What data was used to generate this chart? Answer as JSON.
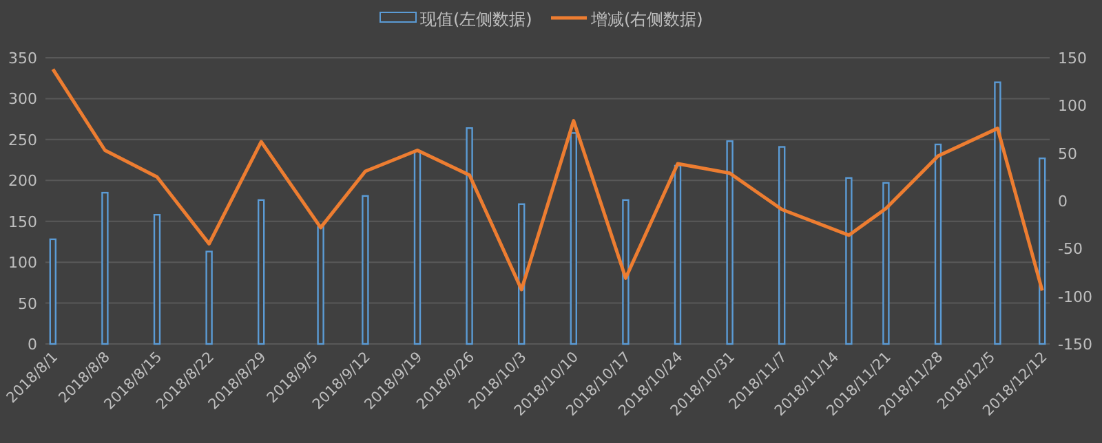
{
  "chart_data": {
    "type": "bar",
    "legend": "top",
    "grid": "y",
    "x": [
      "2018-08-01",
      "2018-08-08",
      "2018-08-15",
      "2018-08-22",
      "2018-08-29",
      "2018-09-06",
      "2018-09-12",
      "2018-09-19",
      "2018-09-26",
      "2018-10-03",
      "2018-10-10",
      "2018-10-17",
      "2018-10-24",
      "2018-10-31",
      "2018-11-07",
      "2018-11-16",
      "2018-11-21",
      "2018-11-28",
      "2018-12-06",
      "2018-12-12"
    ],
    "xlim": [
      "2018-07-31",
      "2018-12-13"
    ],
    "xticks": [
      {
        "value": "2018-08-01",
        "label": "2018/8/1"
      },
      {
        "value": "2018-08-08",
        "label": "2018/8/8"
      },
      {
        "value": "2018-08-15",
        "label": "2018/8/15"
      },
      {
        "value": "2018-08-22",
        "label": "2018/8/22"
      },
      {
        "value": "2018-08-29",
        "label": "2018/8/29"
      },
      {
        "value": "2018-09-05",
        "label": "2018/9/5"
      },
      {
        "value": "2018-09-12",
        "label": "2018/9/12"
      },
      {
        "value": "2018-09-19",
        "label": "2018/9/19"
      },
      {
        "value": "2018-09-26",
        "label": "2018/9/26"
      },
      {
        "value": "2018-10-03",
        "label": "2018/10/3"
      },
      {
        "value": "2018-10-10",
        "label": "2018/10/10"
      },
      {
        "value": "2018-10-17",
        "label": "2018/10/17"
      },
      {
        "value": "2018-10-24",
        "label": "2018/10/24"
      },
      {
        "value": "2018-10-31",
        "label": "2018/10/31"
      },
      {
        "value": "2018-11-07",
        "label": "2018/11/7"
      },
      {
        "value": "2018-11-14",
        "label": "2018/11/14"
      },
      {
        "value": "2018-11-21",
        "label": "2018/11/21"
      },
      {
        "value": "2018-11-28",
        "label": "2018/11/28"
      },
      {
        "value": "2018-12-05",
        "label": "2018/12/5"
      },
      {
        "value": "2018-12-12",
        "label": "2018/12/12"
      }
    ],
    "ylim": [
      0,
      350
    ],
    "yticks": [
      0,
      50,
      100,
      150,
      200,
      250,
      300,
      350
    ],
    "y2lim": [
      -150,
      150
    ],
    "y2ticks": [
      -150,
      -100,
      -50,
      0,
      50,
      100,
      150
    ],
    "series": [
      {
        "name": "现值(左侧数据)",
        "color": "#5b9bd5",
        "values": [
          128,
          185,
          158,
          113,
          176,
          143,
          181,
          236,
          264,
          171,
          258,
          176,
          218,
          248,
          241,
          203,
          197,
          244,
          320,
          227
        ]
      },
      {
        "name": "增减(右侧数据)",
        "type": "line",
        "axis": "y2",
        "color": "#ed7d31",
        "values": [
          138,
          53,
          25,
          -45,
          62,
          -28,
          31,
          53,
          27,
          -93,
          84,
          -81,
          39,
          29,
          -9,
          -36,
          -8,
          47,
          76,
          -94
        ]
      }
    ]
  }
}
